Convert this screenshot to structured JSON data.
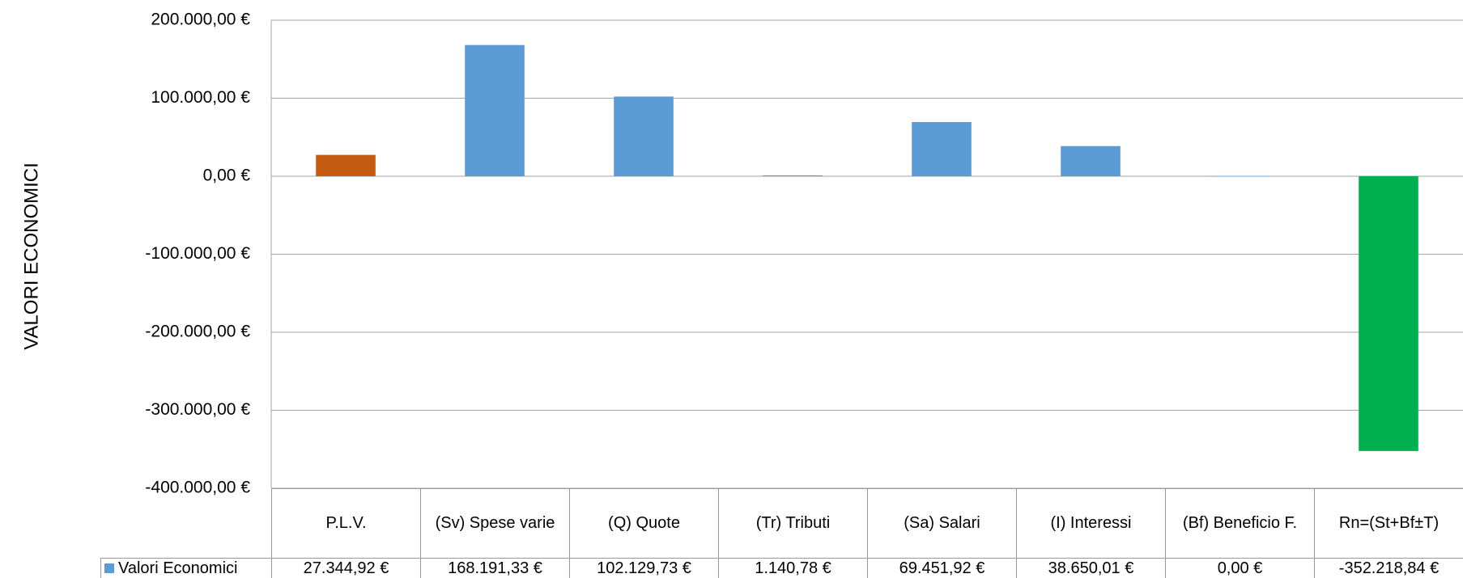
{
  "chart_data": {
    "type": "bar",
    "y_axis_label": "VALORI ECONOMICI",
    "categories": [
      "P.L.V.",
      "(Sv) Spese varie",
      "(Q) Quote",
      "(Tr) Tributi",
      "(Sa) Salari",
      "(I) Interessi",
      "(Bf) Beneficio F.",
      "Rn=(St+Bf±T)"
    ],
    "series": [
      {
        "name": "Valori Economici",
        "color": "#5b9bd5",
        "colors": [
          "#c55a11",
          "#5b9bd5",
          "#5b9bd5",
          "#5b9bd5",
          "#5b9bd5",
          "#5b9bd5",
          "#5b9bd5",
          "#00b050"
        ],
        "values": [
          27344.92,
          168191.33,
          102129.73,
          1140.78,
          69451.92,
          38650.01,
          0,
          -352218.84
        ],
        "value_labels": [
          "27.344,92 €",
          "168.191,33 €",
          "102.129,73 €",
          "1.140,78 €",
          "69.451,92 €",
          "38.650,01 €",
          "0,00 €",
          "-352.218,84 €"
        ]
      }
    ],
    "ylim": [
      -400000,
      200000
    ],
    "yticks": [
      {
        "value": -400000,
        "label": "-400.000,00 €"
      },
      {
        "value": -300000,
        "label": "-300.000,00 €"
      },
      {
        "value": -200000,
        "label": "-200.000,00 €"
      },
      {
        "value": -100000,
        "label": "-100.000,00 €"
      },
      {
        "value": 0,
        "label": "0,00 €"
      },
      {
        "value": 100000,
        "label": "100.000,00 €"
      },
      {
        "value": 200000,
        "label": "200.000,00 €"
      }
    ],
    "grid": true
  }
}
